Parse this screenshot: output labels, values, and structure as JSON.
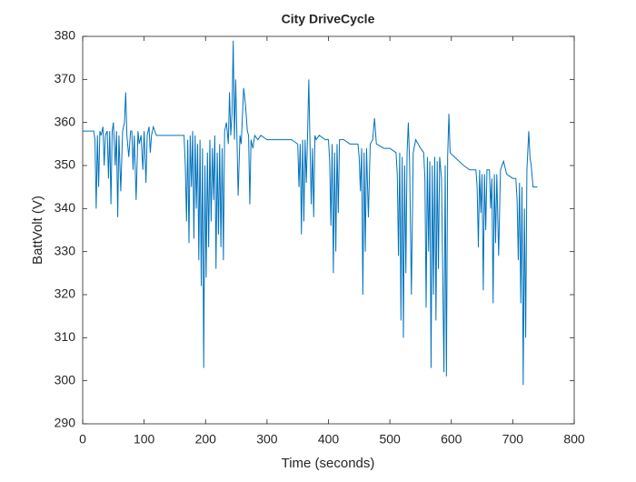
{
  "chart_data": {
    "type": "line",
    "title": "City DriveCycle",
    "x_label": "Time (seconds)",
    "y_label": "BattVolt (V)",
    "color": "#0072bd",
    "x": [
      0,
      18,
      20,
      22,
      24,
      26,
      28,
      30,
      33,
      35,
      37,
      40,
      42,
      44,
      46,
      48,
      50,
      53,
      55,
      57,
      59,
      62,
      65,
      68,
      70,
      72,
      75,
      78,
      80,
      82,
      84,
      87,
      90,
      92,
      95,
      98,
      100,
      103,
      105,
      108,
      110,
      112,
      115,
      120,
      165,
      167,
      169,
      171,
      173,
      175,
      177,
      179,
      181,
      183,
      185,
      187,
      189,
      191,
      193,
      195,
      197,
      199,
      201,
      203,
      205,
      207,
      209,
      211,
      213,
      215,
      217,
      219,
      221,
      223,
      225,
      227,
      229,
      231,
      234,
      237,
      239,
      241,
      243,
      245,
      247,
      249,
      251,
      253,
      256,
      258,
      262,
      265,
      268,
      270,
      272,
      274,
      277,
      280,
      285,
      290,
      300,
      320,
      340,
      350,
      352,
      354,
      356,
      358,
      360,
      362,
      364,
      366,
      368,
      370,
      372,
      374,
      376,
      378,
      380,
      385,
      395,
      400,
      402,
      404,
      406,
      408,
      410,
      412,
      414,
      416,
      418,
      425,
      435,
      448,
      450,
      452,
      454,
      456,
      458,
      460,
      462,
      465,
      468,
      472,
      475,
      478,
      490,
      500,
      510,
      512,
      514,
      516,
      518,
      520,
      522,
      524,
      526,
      528,
      530,
      532,
      535,
      538,
      542,
      550,
      555,
      557,
      559,
      561,
      563,
      565,
      567,
      569,
      571,
      573,
      575,
      577,
      579,
      581,
      584,
      588,
      590,
      592,
      594,
      596,
      598,
      605,
      620,
      630,
      640,
      642,
      644,
      646,
      648,
      650,
      652,
      654,
      656,
      658,
      662,
      664,
      666,
      668,
      670,
      672,
      674,
      677,
      680,
      685,
      690,
      700,
      705,
      707,
      709,
      711,
      713,
      715,
      717,
      719,
      721,
      723,
      726,
      728,
      730,
      733,
      740
    ],
    "values": [
      358,
      358,
      356,
      340,
      357,
      345,
      358,
      357,
      359,
      350,
      357,
      358,
      347,
      358,
      341,
      358,
      360,
      350,
      358,
      338,
      357,
      344,
      358,
      360,
      367,
      357,
      352,
      358,
      358,
      349,
      357,
      342,
      358,
      355,
      357,
      349,
      358,
      346,
      357,
      359,
      353,
      357,
      359,
      357,
      357,
      350,
      337,
      356,
      332,
      357,
      345,
      358,
      333,
      357,
      340,
      355,
      328,
      356,
      322,
      354,
      303,
      350,
      324,
      353,
      331,
      356,
      337,
      354,
      342,
      357,
      326,
      353,
      334,
      355,
      331,
      354,
      328,
      358,
      360,
      355,
      367,
      357,
      362,
      379,
      356,
      370,
      357,
      343,
      357,
      355,
      368,
      364,
      358,
      357,
      341,
      356,
      354,
      357,
      356,
      357,
      356,
      356,
      356,
      355,
      345,
      355,
      334,
      356,
      337,
      356,
      346,
      357,
      370,
      355,
      341,
      354,
      338,
      357,
      356,
      357,
      356,
      356,
      351,
      336,
      355,
      325,
      353,
      330,
      355,
      339,
      356,
      356,
      355,
      355,
      352,
      344,
      354,
      320,
      353,
      330,
      354,
      338,
      355,
      356,
      361,
      355,
      354,
      354,
      353,
      348,
      329,
      353,
      314,
      352,
      310,
      350,
      325,
      353,
      360,
      351,
      320,
      353,
      356,
      354,
      353,
      347,
      317,
      352,
      330,
      351,
      303,
      350,
      320,
      352,
      314,
      351,
      326,
      352,
      347,
      302,
      350,
      301,
      352,
      362,
      353,
      352,
      350,
      349,
      349,
      345,
      331,
      349,
      339,
      348,
      321,
      348,
      335,
      349,
      349,
      340,
      347,
      318,
      348,
      332,
      348,
      329,
      349,
      351,
      348,
      347,
      347,
      342,
      328,
      346,
      318,
      345,
      299,
      340,
      310,
      349,
      358,
      352,
      350,
      345,
      345
    ],
    "xlim": [
      0,
      800
    ],
    "xticks": [
      0,
      100,
      200,
      300,
      400,
      500,
      600,
      700,
      800
    ],
    "ylim": [
      290,
      380
    ],
    "yticks": [
      290,
      300,
      310,
      320,
      330,
      340,
      350,
      360,
      370,
      380
    ]
  }
}
